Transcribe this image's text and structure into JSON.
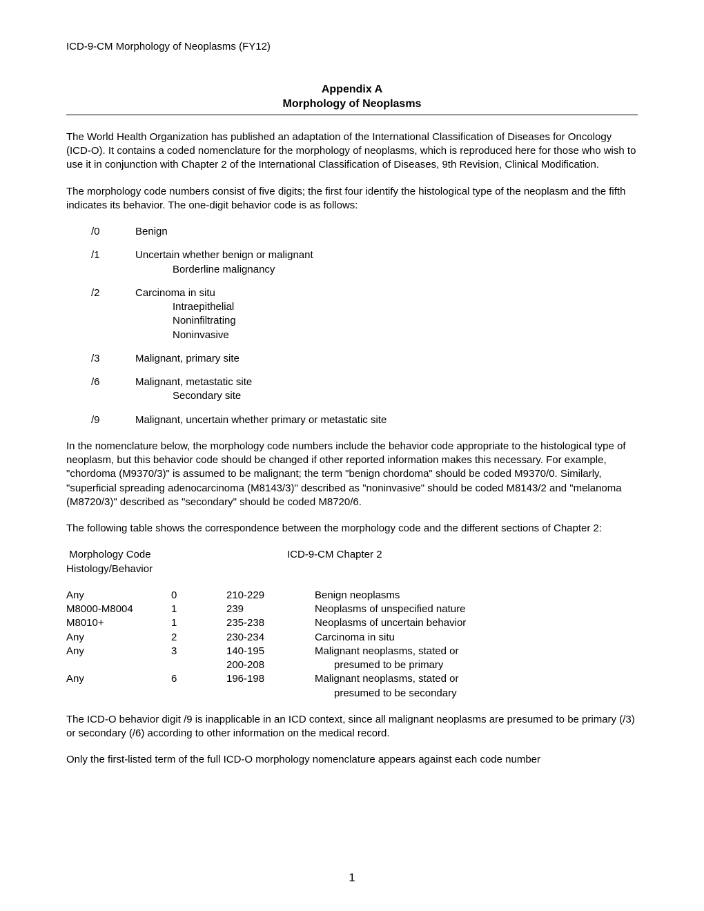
{
  "header": "ICD-9-CM Morphology of Neoplasms (FY12)",
  "title1": "Appendix A",
  "title2": "Morphology of Neoplasms",
  "para1": "The World Health Organization has published an adaptation of the International Classification of Diseases for Oncology (ICD-O). It contains a coded nomenclature for the morphology of neoplasms, which is reproduced here for those who wish to use it in conjunction with Chapter 2 of the International Classification of Diseases, 9th Revision, Clinical Modification.",
  "para2": "The morphology code numbers consist of five digits; the first four identify the histological type of the neoplasm and the fifth indicates its behavior. The one-digit behavior code is as follows:",
  "behaviors": [
    {
      "code": "/0",
      "main": "Benign",
      "subs": []
    },
    {
      "code": "/1",
      "main": "Uncertain whether benign or malignant",
      "subs": [
        "Borderline malignancy"
      ]
    },
    {
      "code": "/2",
      "main": "Carcinoma in situ",
      "subs": [
        "Intraepithelial",
        "Noninfiltrating",
        "Noninvasive"
      ]
    },
    {
      "code": "/3",
      "main": "Malignant, primary site",
      "subs": []
    },
    {
      "code": "/6",
      "main": "Malignant, metastatic site",
      "subs": [
        "Secondary site"
      ]
    },
    {
      "code": "/9",
      "main": "Malignant, uncertain whether primary or metastatic site",
      "subs": []
    }
  ],
  "para3": "In the nomenclature below, the morphology code numbers include the behavior code appropriate to the histological type of neoplasm, but this behavior code should be changed if other reported information makes this necessary. For example, \"chordoma (M9370/3)\" is assumed to be malignant; the term \"benign chordoma\" should be coded M9370/0. Similarly, \"superficial spreading adenocarcinoma (M8143/3)\" described as \"noninvasive\" should be coded M8143/2 and \"melanoma (M8720/3)\" described as \"secondary\" should be coded M8720/6.",
  "para4": "The following table shows the correspondence between the morphology code and the different sections of Chapter 2:",
  "tableHeader": {
    "left1": " Morphology Code",
    "left2": "Histology/Behavior",
    "right": "ICD-9-CM Chapter 2"
  },
  "tableRows": [
    {
      "c1": "Any",
      "c2": "0",
      "c3": "210-229",
      "c4": "Benign neoplasms"
    },
    {
      "c1": "M8000-M8004",
      "c2": "1",
      "c3": "239",
      "c4": "Neoplasms of unspecified nature"
    },
    {
      "c1": "M8010+",
      "c2": "1",
      "c3": "235-238",
      "c4": "Neoplasms of uncertain behavior"
    },
    {
      "c1": "Any",
      "c2": "2",
      "c3": "230-234",
      "c4": "Carcinoma in situ"
    },
    {
      "c1": "Any",
      "c2": "3",
      "c3": "140-195",
      "c4": "Malignant neoplasms, stated or"
    },
    {
      "c1": "",
      "c2": "",
      "c3": "200-208",
      "c4": "presumed to be primary",
      "indent": true
    },
    {
      "c1": "Any",
      "c2": "6",
      "c3": "196-198",
      "c4": "Malignant neoplasms, stated or"
    },
    {
      "c1": "",
      "c2": "",
      "c3": "",
      "c4": "presumed to be secondary",
      "indent": true
    }
  ],
  "para5": "The ICD-O behavior digit /9 is inapplicable in an ICD context, since all malignant neoplasms are presumed to be primary (/3) or secondary (/6) according to other information on the medical record.",
  "para6": "Only the first-listed term of the full ICD-O morphology nomenclature appears against each code number",
  "pageNumber": "1"
}
